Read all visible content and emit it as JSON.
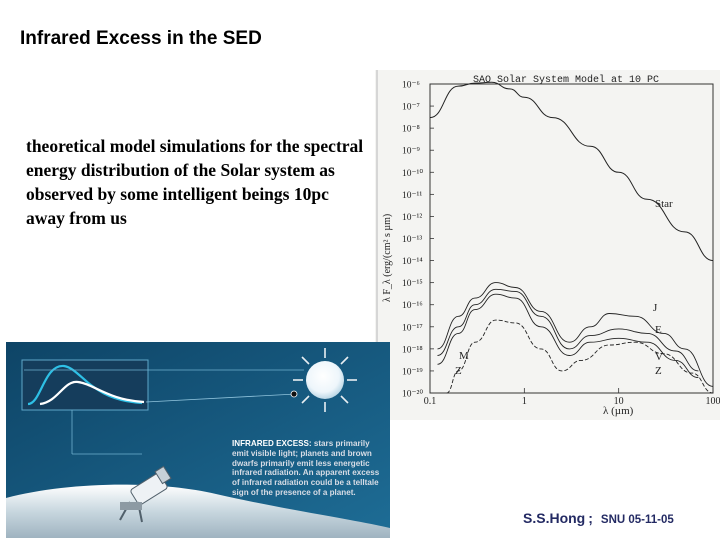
{
  "title": "Infrared Excess in the SED",
  "description": "theoretical model simulations for the spectral energy distribution of the Solar system as observed by some intelligent beings 10pc away from us",
  "figure": {
    "title": "SAO Solar System Model at 10 PC",
    "y_axis_label": "λ F_λ (erg/(cm² s µm)",
    "x_axis_label": "λ (µm)",
    "y_ticks": [
      "10⁻⁶",
      "10⁻⁷",
      "10⁻⁸",
      "10⁻⁹",
      "10⁻¹⁰",
      "10⁻¹¹",
      "10⁻¹²",
      "10⁻¹³",
      "10⁻¹⁴",
      "10⁻¹⁵",
      "10⁻¹⁶",
      "10⁻¹⁷",
      "10⁻¹⁸",
      "10⁻¹⁹",
      "10⁻²⁰"
    ],
    "x_ticks": [
      "0.1",
      "1",
      "10",
      "100"
    ],
    "curve_labels": {
      "star": "Star",
      "J": "J",
      "E": "E",
      "V": "V",
      "Z": "Z",
      "M": "M"
    }
  },
  "chart_data": {
    "type": "line",
    "title": "SAO Solar System Model at 10 PC",
    "xlabel": "λ (µm)",
    "ylabel": "λ F_λ (erg/(cm² s µm)",
    "x_scale": "log",
    "y_scale": "log",
    "xlim": [
      0.1,
      100
    ],
    "ylim": [
      1e-20,
      1e-06
    ],
    "series": [
      {
        "name": "Star",
        "x": [
          0.1,
          0.2,
          0.3,
          0.45,
          0.7,
          1,
          2,
          5,
          10,
          20,
          50,
          100
        ],
        "y": [
          3e-08,
          8e-07,
          1.1e-06,
          1.2e-06,
          6e-07,
          2.5e-07,
          3e-08,
          1.5e-09,
          1e-10,
          6e-12,
          2e-13,
          1e-14
        ]
      },
      {
        "name": "J",
        "x": [
          0.12,
          0.2,
          0.3,
          0.5,
          0.8,
          1.5,
          3,
          5,
          8,
          15,
          30,
          50,
          100
        ],
        "y": [
          1e-18,
          3e-17,
          2e-16,
          1e-15,
          6e-16,
          5e-17,
          2e-18,
          1e-17,
          4e-17,
          3e-17,
          5e-18,
          1e-18,
          2e-20
        ]
      },
      {
        "name": "E",
        "x": [
          0.12,
          0.2,
          0.3,
          0.5,
          0.8,
          1.5,
          3,
          5,
          10,
          20,
          40,
          70
        ],
        "y": [
          5e-19,
          1e-17,
          1e-16,
          5e-16,
          4e-16,
          3e-17,
          1e-18,
          4e-18,
          8e-18,
          5e-18,
          8e-19,
          1e-19
        ]
      },
      {
        "name": "V",
        "x": [
          0.12,
          0.2,
          0.3,
          0.5,
          0.8,
          1.5,
          3,
          5,
          10,
          20,
          40,
          70
        ],
        "y": [
          2e-19,
          5e-18,
          6e-17,
          3e-16,
          2e-16,
          1e-17,
          5e-19,
          2e-18,
          3e-18,
          2e-18,
          3e-19,
          5e-20
        ]
      },
      {
        "name": "Z",
        "x": [
          0.15,
          0.2,
          0.3,
          0.5,
          0.8,
          1.5,
          2.5,
          4,
          8,
          15,
          30,
          60,
          100
        ],
        "y": [
          1e-20,
          1e-19,
          2e-18,
          2e-17,
          1.5e-17,
          1e-18,
          1e-19,
          3e-19,
          1.5e-18,
          2e-18,
          6e-19,
          8e-20,
          1e-20
        ]
      }
    ]
  },
  "illustration": {
    "caption_keyword": "INFRARED EXCESS:",
    "caption_body": "stars primarily emit visible light; planets and brown dwarfs primarily emit less energetic infrared radiation. An apparent excess of infrared radiation could be a telltale sign of the presence of a planet."
  },
  "footer": {
    "author": "S.S.Hong",
    "separator": ";",
    "event": "SNU 05-11-05"
  },
  "colors": {
    "footer_text": "#232a63",
    "illustration_bg": "#0f4f78",
    "curve_cyan": "#2ec0e6",
    "curve_white": "#ffffff"
  }
}
